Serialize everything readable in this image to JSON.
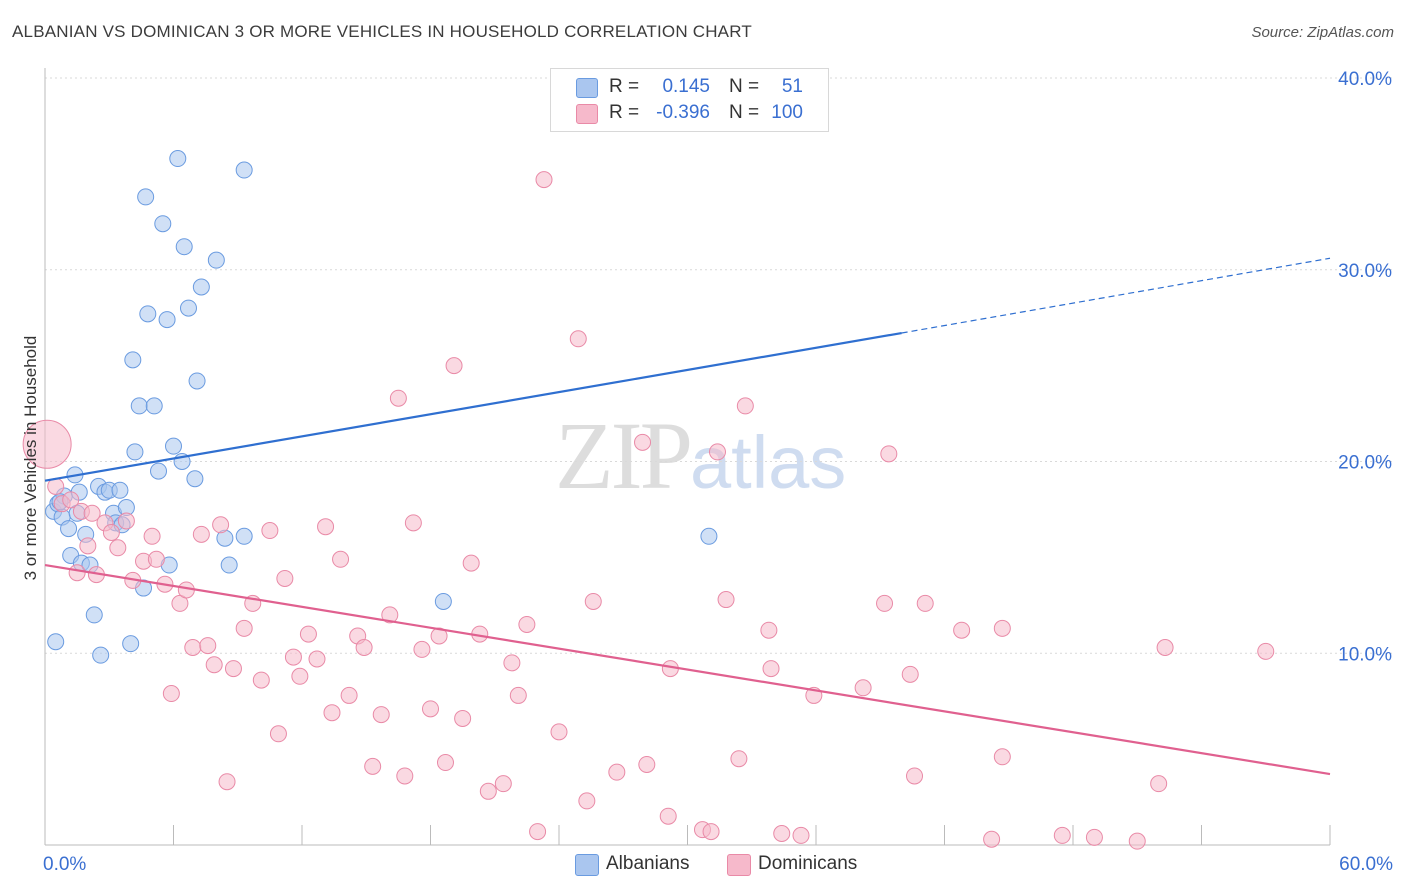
{
  "title": "ALBANIAN VS DOMINICAN 3 OR MORE VEHICLES IN HOUSEHOLD CORRELATION CHART",
  "source": "Source: ZipAtlas.com",
  "watermark": {
    "zip": "ZIP",
    "atlas": "atlas"
  },
  "legend": {
    "rows": [
      {
        "r_label": "R =",
        "r_value": "0.145",
        "n_label": "N =",
        "n_value": "51",
        "color": "#aac6ef"
      },
      {
        "r_label": "R =",
        "r_value": "-0.396",
        "n_label": "N =",
        "n_value": "100",
        "color": "#f6b9cb"
      }
    ]
  },
  "bottom_legend": [
    {
      "label": "Albanians",
      "color": "#aac6ef"
    },
    {
      "label": "Dominicans",
      "color": "#f6b9cb"
    }
  ],
  "chart_data": {
    "type": "scatter",
    "title": "ALBANIAN VS DOMINICAN 3 OR MORE VEHICLES IN HOUSEHOLD CORRELATION CHART",
    "xlabel": "",
    "ylabel": "3 or more Vehicles in Household",
    "xlim": [
      0,
      60
    ],
    "ylim": [
      0,
      40
    ],
    "x_tick_labels": [
      "0.0%",
      "60.0%"
    ],
    "y_tick_labels": [
      "10.0%",
      "20.0%",
      "30.0%",
      "40.0%"
    ],
    "y_ticks": [
      10,
      20,
      30,
      40
    ],
    "grid": true,
    "series": [
      {
        "name": "Albanians",
        "color": "#6a9be0",
        "fill": "#aac6ef",
        "trend": {
          "x0": 0,
          "y0": 19.0,
          "x1": 40,
          "y1": 26.7,
          "dashed_to_x": 60,
          "dashed_to_y": 30.6,
          "color": "#2f6fd0"
        },
        "points": [
          [
            0.4,
            17.4
          ],
          [
            0.6,
            17.8
          ],
          [
            0.8,
            17.1
          ],
          [
            0.9,
            18.2
          ],
          [
            1.1,
            16.5
          ],
          [
            1.2,
            15.1
          ],
          [
            1.4,
            19.3
          ],
          [
            1.6,
            18.4
          ],
          [
            1.7,
            14.7
          ],
          [
            1.9,
            16.2
          ],
          [
            2.1,
            14.6
          ],
          [
            2.3,
            12.0
          ],
          [
            2.5,
            18.7
          ],
          [
            2.6,
            9.9
          ],
          [
            2.8,
            18.4
          ],
          [
            3.0,
            18.5
          ],
          [
            3.2,
            17.3
          ],
          [
            3.3,
            16.8
          ],
          [
            3.5,
            18.5
          ],
          [
            3.6,
            16.7
          ],
          [
            3.8,
            17.6
          ],
          [
            4.0,
            10.5
          ],
          [
            4.1,
            25.3
          ],
          [
            4.2,
            20.5
          ],
          [
            4.4,
            22.9
          ],
          [
            4.6,
            13.4
          ],
          [
            4.7,
            33.8
          ],
          [
            4.8,
            27.7
          ],
          [
            5.1,
            22.9
          ],
          [
            5.3,
            19.5
          ],
          [
            5.5,
            32.4
          ],
          [
            5.7,
            27.4
          ],
          [
            5.8,
            14.6
          ],
          [
            6.0,
            20.8
          ],
          [
            6.2,
            35.8
          ],
          [
            6.4,
            20.0
          ],
          [
            6.5,
            31.2
          ],
          [
            6.7,
            28.0
          ],
          [
            7.0,
            19.1
          ],
          [
            7.1,
            24.2
          ],
          [
            7.3,
            29.1
          ],
          [
            8.0,
            30.5
          ],
          [
            8.4,
            16.0
          ],
          [
            8.6,
            14.6
          ],
          [
            9.3,
            35.2
          ],
          [
            9.3,
            16.1
          ],
          [
            0.5,
            10.6
          ],
          [
            18.6,
            12.7
          ],
          [
            31.0,
            16.1
          ],
          [
            1.5,
            17.3
          ],
          [
            0.7,
            17.9
          ]
        ]
      },
      {
        "name": "Dominicans",
        "color": "#e98aa7",
        "fill": "#f6b9cb",
        "trend": {
          "x0": 0,
          "y0": 14.6,
          "x1": 60,
          "y1": 3.7,
          "color": "#e0608f"
        },
        "points": [
          [
            0.1,
            20.9
          ],
          [
            0.5,
            18.7
          ],
          [
            0.8,
            17.8
          ],
          [
            1.2,
            18.0
          ],
          [
            1.5,
            14.2
          ],
          [
            1.7,
            17.4
          ],
          [
            2.0,
            15.6
          ],
          [
            2.2,
            17.3
          ],
          [
            2.4,
            14.1
          ],
          [
            2.8,
            16.8
          ],
          [
            3.1,
            16.3
          ],
          [
            3.4,
            15.5
          ],
          [
            3.8,
            16.9
          ],
          [
            4.1,
            13.8
          ],
          [
            4.6,
            14.8
          ],
          [
            5.0,
            16.1
          ],
          [
            5.2,
            14.9
          ],
          [
            5.6,
            13.6
          ],
          [
            5.9,
            7.9
          ],
          [
            6.3,
            12.6
          ],
          [
            6.6,
            13.3
          ],
          [
            6.9,
            10.3
          ],
          [
            7.3,
            16.2
          ],
          [
            7.6,
            10.4
          ],
          [
            7.9,
            9.4
          ],
          [
            8.2,
            16.7
          ],
          [
            8.5,
            3.3
          ],
          [
            8.8,
            9.2
          ],
          [
            9.3,
            11.3
          ],
          [
            9.7,
            12.6
          ],
          [
            10.1,
            8.6
          ],
          [
            10.5,
            16.4
          ],
          [
            10.9,
            5.8
          ],
          [
            11.2,
            13.9
          ],
          [
            11.6,
            9.8
          ],
          [
            11.9,
            8.8
          ],
          [
            12.3,
            11.0
          ],
          [
            12.7,
            9.7
          ],
          [
            13.1,
            16.6
          ],
          [
            13.4,
            6.9
          ],
          [
            13.8,
            14.9
          ],
          [
            14.2,
            7.8
          ],
          [
            14.6,
            10.9
          ],
          [
            14.9,
            10.3
          ],
          [
            15.3,
            4.1
          ],
          [
            15.7,
            6.8
          ],
          [
            16.1,
            12.0
          ],
          [
            16.5,
            23.3
          ],
          [
            16.8,
            3.6
          ],
          [
            17.2,
            16.8
          ],
          [
            17.6,
            10.2
          ],
          [
            18.0,
            7.1
          ],
          [
            18.4,
            10.9
          ],
          [
            18.7,
            4.3
          ],
          [
            19.1,
            25.0
          ],
          [
            19.5,
            6.6
          ],
          [
            19.9,
            14.7
          ],
          [
            20.3,
            11.0
          ],
          [
            20.7,
            2.8
          ],
          [
            21.4,
            3.2
          ],
          [
            21.8,
            9.5
          ],
          [
            22.1,
            7.8
          ],
          [
            22.5,
            11.5
          ],
          [
            23.0,
            0.7
          ],
          [
            23.3,
            34.7
          ],
          [
            24.0,
            5.9
          ],
          [
            24.9,
            26.4
          ],
          [
            25.3,
            2.3
          ],
          [
            25.6,
            12.7
          ],
          [
            26.7,
            3.8
          ],
          [
            27.9,
            21.0
          ],
          [
            28.1,
            4.2
          ],
          [
            29.1,
            1.5
          ],
          [
            29.2,
            9.2
          ],
          [
            30.7,
            0.8
          ],
          [
            31.1,
            0.7
          ],
          [
            31.4,
            20.5
          ],
          [
            31.8,
            12.8
          ],
          [
            32.4,
            4.5
          ],
          [
            32.7,
            22.9
          ],
          [
            33.8,
            11.2
          ],
          [
            33.9,
            9.2
          ],
          [
            34.4,
            0.6
          ],
          [
            35.3,
            0.5
          ],
          [
            35.9,
            7.8
          ],
          [
            38.2,
            8.2
          ],
          [
            39.2,
            12.6
          ],
          [
            39.4,
            20.4
          ],
          [
            40.4,
            8.9
          ],
          [
            40.6,
            3.6
          ],
          [
            41.1,
            12.6
          ],
          [
            42.8,
            11.2
          ],
          [
            44.2,
            0.3
          ],
          [
            44.7,
            4.6
          ],
          [
            44.7,
            11.3
          ],
          [
            47.5,
            0.5
          ],
          [
            49.0,
            0.4
          ],
          [
            51.0,
            0.2
          ],
          [
            52.0,
            3.2
          ],
          [
            52.3,
            10.3
          ]
        ]
      }
    ],
    "extra_points": {
      "Dominicans": [
        [
          57.0,
          10.1
        ]
      ]
    }
  }
}
